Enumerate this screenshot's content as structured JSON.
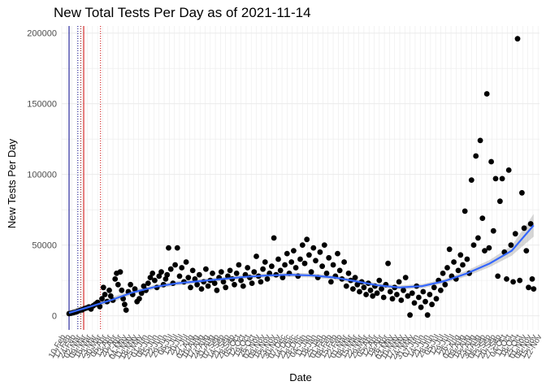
{
  "chart_data": {
    "type": "scatter",
    "title": "New Total Tests Per Day as of 2021-11-14",
    "xlabel": "Date",
    "ylabel": "New Tests Per Day",
    "x_range": [
      "2020-02-08",
      "2021-11-22"
    ],
    "ylim": [
      -10000,
      205000
    ],
    "y_ticks": [
      0,
      50000,
      100000,
      150000,
      200000
    ],
    "y_tick_labels": [
      "0",
      "50000",
      "100000",
      "150000",
      "200000"
    ],
    "x_tick_labels": [
      "10-Feb",
      "17-Feb",
      "24-Feb",
      "02-Mar",
      "09-Mar",
      "16-Mar",
      "23-Mar",
      "30-Mar",
      "06-Apr",
      "13-Apr",
      "20-Apr",
      "27-Apr",
      "04-May",
      "11-May",
      "18-May",
      "25-May",
      "01-Jun",
      "08-Jun",
      "15-Jun",
      "22-Jun",
      "29-Jun",
      "06-Jul",
      "13-Jul",
      "20-Jul",
      "27-Jul",
      "03-Aug",
      "10-Aug",
      "17-Aug",
      "24-Aug",
      "31-Aug",
      "07-Sep",
      "14-Sep",
      "21-Sep",
      "28-Sep",
      "05-Oct",
      "12-Oct",
      "19-Oct",
      "26-Oct",
      "02-Nov",
      "09-Nov",
      "16-Nov",
      "23-Nov",
      "30-Nov",
      "07-Dec",
      "14-Dec",
      "21-Dec",
      "28-Dec",
      "04-Jan",
      "11-Jan",
      "18-Jan",
      "25-Jan",
      "01-Feb",
      "08-Feb",
      "15-Feb",
      "22-Feb",
      "01-Mar",
      "08-Mar",
      "15-Mar",
      "22-Mar",
      "29-Mar",
      "05-Apr",
      "12-Apr",
      "19-Apr",
      "26-Apr",
      "03-May",
      "10-May",
      "17-May",
      "24-May",
      "31-May",
      "07-Jun",
      "14-Jun",
      "21-Jun",
      "28-Jun",
      "05-Jul",
      "12-Jul",
      "19-Jul",
      "26-Jul",
      "02-Aug",
      "09-Aug",
      "16-Aug",
      "23-Aug",
      "30-Aug",
      "06-Sep",
      "13-Sep",
      "20-Sep",
      "27-Sep",
      "04-Oct",
      "11-Oct",
      "18-Oct",
      "25-Oct",
      "01-Nov",
      "08-Nov",
      "15-Nov",
      "22-Nov"
    ],
    "grid": true,
    "reference_lines": [
      {
        "date": "2020-02-18",
        "color": "#00008b",
        "style": "solid"
      },
      {
        "date": "2020-03-01",
        "color": "#00008b",
        "style": "dotted"
      },
      {
        "date": "2020-03-05",
        "color": "#8b0000",
        "style": "dotted"
      },
      {
        "date": "2020-03-09",
        "color": "#cc0000",
        "style": "solid"
      },
      {
        "date": "2020-04-01",
        "color": "#cc0000",
        "style": "dotted"
      }
    ],
    "point_color": "#000000",
    "smooth_color": "#3366ff",
    "band_color": "#999999",
    "smooth": [
      {
        "date": "2020-02-18",
        "y": 2000,
        "lo": 0,
        "hi": 4000
      },
      {
        "date": "2020-03-15",
        "y": 6000,
        "lo": 4000,
        "hi": 8000
      },
      {
        "date": "2020-04-15",
        "y": 11000,
        "lo": 9000,
        "hi": 13000
      },
      {
        "date": "2020-05-15",
        "y": 16500,
        "lo": 15000,
        "hi": 18000
      },
      {
        "date": "2020-06-15",
        "y": 20500,
        "lo": 19000,
        "hi": 22000
      },
      {
        "date": "2020-07-15",
        "y": 23000,
        "lo": 21500,
        "hi": 24500
      },
      {
        "date": "2020-08-15",
        "y": 24500,
        "lo": 23000,
        "hi": 26000
      },
      {
        "date": "2020-09-15",
        "y": 26000,
        "lo": 24500,
        "hi": 27500
      },
      {
        "date": "2020-10-15",
        "y": 27500,
        "lo": 26000,
        "hi": 29000
      },
      {
        "date": "2020-11-15",
        "y": 28500,
        "lo": 27000,
        "hi": 30000
      },
      {
        "date": "2020-12-15",
        "y": 29000,
        "lo": 27500,
        "hi": 30500
      },
      {
        "date": "2021-01-15",
        "y": 28500,
        "lo": 27000,
        "hi": 30000
      },
      {
        "date": "2021-02-15",
        "y": 27000,
        "lo": 25500,
        "hi": 28500
      },
      {
        "date": "2021-03-15",
        "y": 24500,
        "lo": 23000,
        "hi": 26000
      },
      {
        "date": "2021-04-15",
        "y": 21500,
        "lo": 20000,
        "hi": 23000
      },
      {
        "date": "2021-05-15",
        "y": 20000,
        "lo": 18500,
        "hi": 21500
      },
      {
        "date": "2021-06-15",
        "y": 21000,
        "lo": 19500,
        "hi": 22500
      },
      {
        "date": "2021-07-15",
        "y": 24500,
        "lo": 23000,
        "hi": 26000
      },
      {
        "date": "2021-08-15",
        "y": 30000,
        "lo": 28000,
        "hi": 32000
      },
      {
        "date": "2021-09-15",
        "y": 37000,
        "lo": 34500,
        "hi": 39500
      },
      {
        "date": "2021-10-15",
        "y": 46000,
        "lo": 42500,
        "hi": 49500
      },
      {
        "date": "2021-11-14",
        "y": 64000,
        "lo": 56000,
        "hi": 72000
      }
    ],
    "points": [
      [
        "2020-02-18",
        1500
      ],
      [
        "2020-02-21",
        1800
      ],
      [
        "2020-02-24",
        2200
      ],
      [
        "2020-02-27",
        2600
      ],
      [
        "2020-03-01",
        3200
      ],
      [
        "2020-03-04",
        3800
      ],
      [
        "2020-03-07",
        4200
      ],
      [
        "2020-03-10",
        5000
      ],
      [
        "2020-03-13",
        5500
      ],
      [
        "2020-03-16",
        6200
      ],
      [
        "2020-03-19",
        4800
      ],
      [
        "2020-03-22",
        7000
      ],
      [
        "2020-03-25",
        8200
      ],
      [
        "2020-03-28",
        9500
      ],
      [
        "2020-03-31",
        6500
      ],
      [
        "2020-04-03",
        12000
      ],
      [
        "2020-04-05",
        20000
      ],
      [
        "2020-04-07",
        15000
      ],
      [
        "2020-04-10",
        10000
      ],
      [
        "2020-04-13",
        18000
      ],
      [
        "2020-04-15",
        14000
      ],
      [
        "2020-04-18",
        11000
      ],
      [
        "2020-04-21",
        26000
      ],
      [
        "2020-04-23",
        30000
      ],
      [
        "2020-04-25",
        22000
      ],
      [
        "2020-04-28",
        31000
      ],
      [
        "2020-04-30",
        18000
      ],
      [
        "2020-05-02",
        12000
      ],
      [
        "2020-05-04",
        8000
      ],
      [
        "2020-05-06",
        4000
      ],
      [
        "2020-05-09",
        17000
      ],
      [
        "2020-05-12",
        22000
      ],
      [
        "2020-05-15",
        15000
      ],
      [
        "2020-05-18",
        19000
      ],
      [
        "2020-05-21",
        10000
      ],
      [
        "2020-05-24",
        12000
      ],
      [
        "2020-05-27",
        16000
      ],
      [
        "2020-05-30",
        21000
      ],
      [
        "2020-06-02",
        18000
      ],
      [
        "2020-06-05",
        23000
      ],
      [
        "2020-06-08",
        27000
      ],
      [
        "2020-06-11",
        30000
      ],
      [
        "2020-06-14",
        25000
      ],
      [
        "2020-06-17",
        20000
      ],
      [
        "2020-06-20",
        28000
      ],
      [
        "2020-06-23",
        31000
      ],
      [
        "2020-06-26",
        22000
      ],
      [
        "2020-06-29",
        26000
      ],
      [
        "2020-07-01",
        29000
      ],
      [
        "2020-07-03",
        48000
      ],
      [
        "2020-07-06",
        33000
      ],
      [
        "2020-07-09",
        23000
      ],
      [
        "2020-07-12",
        36000
      ],
      [
        "2020-07-15",
        48000
      ],
      [
        "2020-07-18",
        28000
      ],
      [
        "2020-07-21",
        34000
      ],
      [
        "2020-07-24",
        24000
      ],
      [
        "2020-07-27",
        38000
      ],
      [
        "2020-07-30",
        27000
      ],
      [
        "2020-08-02",
        20000
      ],
      [
        "2020-08-05",
        32000
      ],
      [
        "2020-08-08",
        26000
      ],
      [
        "2020-08-11",
        22000
      ],
      [
        "2020-08-14",
        29000
      ],
      [
        "2020-08-17",
        19000
      ],
      [
        "2020-08-20",
        24000
      ],
      [
        "2020-08-23",
        33000
      ],
      [
        "2020-08-26",
        21000
      ],
      [
        "2020-08-29",
        25000
      ],
      [
        "2020-09-01",
        30000
      ],
      [
        "2020-09-04",
        23000
      ],
      [
        "2020-09-07",
        18000
      ],
      [
        "2020-09-10",
        27000
      ],
      [
        "2020-09-13",
        31000
      ],
      [
        "2020-09-16",
        24000
      ],
      [
        "2020-09-19",
        20000
      ],
      [
        "2020-09-22",
        28000
      ],
      [
        "2020-09-25",
        32000
      ],
      [
        "2020-09-28",
        26000
      ],
      [
        "2020-10-01",
        22000
      ],
      [
        "2020-10-04",
        30000
      ],
      [
        "2020-10-07",
        36000
      ],
      [
        "2020-10-10",
        25000
      ],
      [
        "2020-10-13",
        21000
      ],
      [
        "2020-10-16",
        29000
      ],
      [
        "2020-10-19",
        34000
      ],
      [
        "2020-10-22",
        27000
      ],
      [
        "2020-10-25",
        23000
      ],
      [
        "2020-10-28",
        31000
      ],
      [
        "2020-10-31",
        42000
      ],
      [
        "2020-11-03",
        28000
      ],
      [
        "2020-11-06",
        24000
      ],
      [
        "2020-11-09",
        33000
      ],
      [
        "2020-11-12",
        38000
      ],
      [
        "2020-11-15",
        26000
      ],
      [
        "2020-11-18",
        30000
      ],
      [
        "2020-11-21",
        35000
      ],
      [
        "2020-11-24",
        55000
      ],
      [
        "2020-11-27",
        29000
      ],
      [
        "2020-11-30",
        40000
      ],
      [
        "2020-12-03",
        32000
      ],
      [
        "2020-12-06",
        27000
      ],
      [
        "2020-12-09",
        36000
      ],
      [
        "2020-12-12",
        44000
      ],
      [
        "2020-12-15",
        30000
      ],
      [
        "2020-12-18",
        38000
      ],
      [
        "2020-12-21",
        46000
      ],
      [
        "2020-12-24",
        34000
      ],
      [
        "2020-12-27",
        28000
      ],
      [
        "2020-12-30",
        40000
      ],
      [
        "2021-01-02",
        50000
      ],
      [
        "2021-01-05",
        37000
      ],
      [
        "2021-01-08",
        54000
      ],
      [
        "2021-01-11",
        43000
      ],
      [
        "2021-01-14",
        31000
      ],
      [
        "2021-01-17",
        48000
      ],
      [
        "2021-01-20",
        39000
      ],
      [
        "2021-01-23",
        27000
      ],
      [
        "2021-01-26",
        45000
      ],
      [
        "2021-01-29",
        35000
      ],
      [
        "2021-02-01",
        50000
      ],
      [
        "2021-02-04",
        30000
      ],
      [
        "2021-02-07",
        41000
      ],
      [
        "2021-02-10",
        24000
      ],
      [
        "2021-02-13",
        36000
      ],
      [
        "2021-02-16",
        28000
      ],
      [
        "2021-02-19",
        44000
      ],
      [
        "2021-02-22",
        32000
      ],
      [
        "2021-02-25",
        26000
      ],
      [
        "2021-02-28",
        38000
      ],
      [
        "2021-03-03",
        21000
      ],
      [
        "2021-03-06",
        30000
      ],
      [
        "2021-03-09",
        25000
      ],
      [
        "2021-03-12",
        19000
      ],
      [
        "2021-03-15",
        27000
      ],
      [
        "2021-03-18",
        22000
      ],
      [
        "2021-03-21",
        17000
      ],
      [
        "2021-03-24",
        24000
      ],
      [
        "2021-03-27",
        20000
      ],
      [
        "2021-03-30",
        15000
      ],
      [
        "2021-04-02",
        23000
      ],
      [
        "2021-04-05",
        18000
      ],
      [
        "2021-04-08",
        14000
      ],
      [
        "2021-04-11",
        21000
      ],
      [
        "2021-04-14",
        16000
      ],
      [
        "2021-04-17",
        25000
      ],
      [
        "2021-04-20",
        19000
      ],
      [
        "2021-04-23",
        13000
      ],
      [
        "2021-04-26",
        22000
      ],
      [
        "2021-04-29",
        37000
      ],
      [
        "2021-05-02",
        17000
      ],
      [
        "2021-05-05",
        12000
      ],
      [
        "2021-05-08",
        20000
      ],
      [
        "2021-05-11",
        15000
      ],
      [
        "2021-05-14",
        24000
      ],
      [
        "2021-05-17",
        11000
      ],
      [
        "2021-05-20",
        18000
      ],
      [
        "2021-05-23",
        27000
      ],
      [
        "2021-05-26",
        14000
      ],
      [
        "2021-05-29",
        500
      ],
      [
        "2021-06-01",
        16000
      ],
      [
        "2021-06-04",
        9000
      ],
      [
        "2021-06-07",
        21000
      ],
      [
        "2021-06-10",
        13000
      ],
      [
        "2021-06-13",
        6000
      ],
      [
        "2021-06-16",
        17000
      ],
      [
        "2021-06-19",
        10000
      ],
      [
        "2021-06-22",
        500
      ],
      [
        "2021-06-25",
        15000
      ],
      [
        "2021-06-28",
        8000
      ],
      [
        "2021-07-01",
        20000
      ],
      [
        "2021-07-04",
        12000
      ],
      [
        "2021-07-07",
        25000
      ],
      [
        "2021-07-10",
        18000
      ],
      [
        "2021-07-13",
        30000
      ],
      [
        "2021-07-16",
        22000
      ],
      [
        "2021-07-19",
        34000
      ],
      [
        "2021-07-22",
        47000
      ],
      [
        "2021-07-25",
        28000
      ],
      [
        "2021-07-28",
        38000
      ],
      [
        "2021-07-31",
        26000
      ],
      [
        "2021-08-03",
        32000
      ],
      [
        "2021-08-06",
        43000
      ],
      [
        "2021-08-09",
        36000
      ],
      [
        "2021-08-12",
        74000
      ],
      [
        "2021-08-15",
        40000
      ],
      [
        "2021-08-18",
        30000
      ],
      [
        "2021-08-21",
        96000
      ],
      [
        "2021-08-24",
        50000
      ],
      [
        "2021-08-27",
        113000
      ],
      [
        "2021-08-30",
        55000
      ],
      [
        "2021-09-02",
        124000
      ],
      [
        "2021-09-05",
        69000
      ],
      [
        "2021-09-08",
        46000
      ],
      [
        "2021-09-11",
        157000
      ],
      [
        "2021-09-14",
        48000
      ],
      [
        "2021-09-17",
        109000
      ],
      [
        "2021-09-20",
        60000
      ],
      [
        "2021-09-23",
        97000
      ],
      [
        "2021-09-26",
        28000
      ],
      [
        "2021-09-29",
        81000
      ],
      [
        "2021-10-02",
        97000
      ],
      [
        "2021-10-05",
        45000
      ],
      [
        "2021-10-08",
        26000
      ],
      [
        "2021-10-11",
        103000
      ],
      [
        "2021-10-14",
        50000
      ],
      [
        "2021-10-17",
        24000
      ],
      [
        "2021-10-20",
        58000
      ],
      [
        "2021-10-23",
        196000
      ],
      [
        "2021-10-26",
        25000
      ],
      [
        "2021-10-29",
        87000
      ],
      [
        "2021-11-01",
        62000
      ],
      [
        "2021-11-04",
        46000
      ],
      [
        "2021-11-07",
        20000
      ],
      [
        "2021-11-10",
        65000
      ],
      [
        "2021-11-12",
        26000
      ],
      [
        "2021-11-14",
        19000
      ]
    ]
  }
}
